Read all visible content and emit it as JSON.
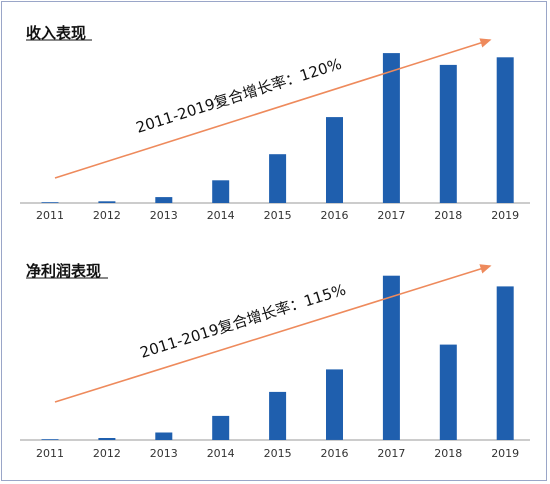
{
  "chart_data": [
    {
      "type": "bar",
      "title": "收入表现",
      "categories": [
        "2011",
        "2012",
        "2013",
        "2014",
        "2015",
        "2016",
        "2017",
        "2018",
        "2019"
      ],
      "values": [
        0.2,
        1,
        3.5,
        13.5,
        29,
        51,
        89,
        82,
        86.5
      ],
      "ylim": [
        0,
        95
      ],
      "color": "#1f5fae",
      "annotation": "2011-2019复合增长率：120%",
      "trend_color": "#ee8a5c"
    },
    {
      "type": "bar",
      "title": "净利润表现",
      "categories": [
        "2011",
        "2012",
        "2013",
        "2014",
        "2015",
        "2016",
        "2017",
        "2018",
        "2019"
      ],
      "values": [
        0.2,
        1.2,
        4.5,
        14.5,
        29,
        42.5,
        99,
        57.5,
        92.5
      ],
      "ylim": [
        0,
        100
      ],
      "color": "#1f5fae",
      "annotation": "2011-2019复合增长率：115%",
      "trend_color": "#ee8a5c"
    }
  ]
}
